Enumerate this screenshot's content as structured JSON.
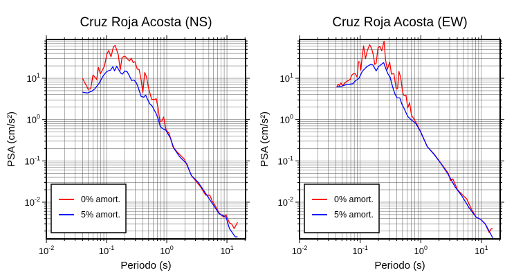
{
  "chart_data": [
    {
      "type": "line",
      "title": "Cruz Roja Acosta (NS)",
      "xlabel": "Periodo (s)",
      "ylabel": "PSA (cm/s²)",
      "xscale": "log",
      "yscale": "log",
      "xlim": [
        0.01,
        20.4
      ],
      "ylim": [
        0.00129,
        87
      ],
      "grid": true,
      "legend_position": "bottom-left",
      "xticks": [
        {
          "v": 0.01,
          "base": "10",
          "exp": "-2"
        },
        {
          "v": 0.1,
          "base": "10",
          "exp": "-1"
        },
        {
          "v": 1,
          "base": "10",
          "exp": "0"
        },
        {
          "v": 10,
          "base": "10",
          "exp": "1"
        }
      ],
      "yticks": [
        {
          "v": 10,
          "base": "10",
          "exp": "1"
        },
        {
          "v": 1,
          "base": "10",
          "exp": "0"
        },
        {
          "v": 0.1,
          "base": "10",
          "exp": "-1"
        },
        {
          "v": 0.01,
          "base": "10",
          "exp": "-2"
        }
      ],
      "series": [
        {
          "name": "0% amort.",
          "color": "#ff0000",
          "x": [
            0.04,
            0.0426,
            0.047,
            0.0494,
            0.0545,
            0.0595,
            0.0686,
            0.0736,
            0.079,
            0.0926,
            0.101,
            0.1086,
            0.1186,
            0.1295,
            0.139,
            0.157,
            0.169,
            0.181,
            0.201,
            0.24,
            0.258,
            0.277,
            0.297,
            0.324,
            0.348,
            0.374,
            0.401,
            0.431,
            0.462,
            0.496,
            0.532,
            0.561,
            0.624,
            0.67,
            0.719,
            0.771,
            0.828,
            0.889,
            0.97,
            1.099,
            1.265,
            1.51,
            1.97,
            2.56,
            3.65,
            4.43,
            5.2,
            5.68,
            6.2,
            7.4,
            8.83,
            9.64,
            11.0,
            12.0,
            13.2,
            15.0
          ],
          "y": [
            10,
            8.2,
            6.4,
            5.4,
            5.6,
            12.0,
            9.4,
            18.3,
            12.9,
            19.8,
            38.3,
            47,
            33.2,
            57,
            63,
            36.3,
            15.7,
            31.9,
            34.5,
            26.3,
            30.7,
            24,
            25.3,
            16.7,
            16.3,
            9.4,
            4.5,
            13.8,
            10.7,
            6.0,
            4.1,
            3.1,
            3.05,
            3.2,
            1.87,
            0.885,
            0.92,
            1.16,
            0.57,
            0.46,
            0.222,
            0.161,
            0.109,
            0.0443,
            0.0233,
            0.0148,
            0.0148,
            0.0107,
            0.00885,
            0.00548,
            0.00435,
            0.00495,
            0.00315,
            0.00296,
            0.00229,
            0.00327
          ]
        },
        {
          "name": "5% amort.",
          "color": "#0000ff",
          "x": [
            0.04,
            0.0482,
            0.0575,
            0.064,
            0.075,
            0.0879,
            0.101,
            0.1165,
            0.127,
            0.136,
            0.147,
            0.157,
            0.172,
            0.184,
            0.201,
            0.22,
            0.24,
            0.262,
            0.287,
            0.313,
            0.336,
            0.374,
            0.416,
            0.446,
            0.479,
            0.523,
            0.571,
            0.658,
            0.719,
            0.785,
            0.889,
            0.97,
            1.16,
            1.31,
            1.65,
            2.15,
            2.56,
            3.34,
            3.99,
            4.76,
            5.68,
            7.4,
            9.64,
            11.0,
            13.7,
            15.0
          ],
          "y": [
            4.6,
            4.4,
            4.9,
            5.6,
            7.5,
            11.4,
            14.7,
            15.7,
            19.1,
            15.1,
            19.5,
            16.7,
            13.3,
            12.6,
            15.1,
            14.4,
            11.4,
            8.8,
            9.1,
            7.7,
            6.0,
            3.66,
            3.47,
            3.95,
            3.1,
            2.42,
            2.13,
            1.45,
            1.05,
            0.667,
            0.586,
            0.55,
            0.349,
            0.203,
            0.124,
            0.0846,
            0.0443,
            0.0301,
            0.0205,
            0.0139,
            0.00944,
            0.00528,
            0.00435,
            0.00229,
            0.00145,
            0.00145
          ]
        }
      ]
    },
    {
      "type": "line",
      "title": "Cruz Roja Acosta (EW)",
      "xlabel": "Periodo (s)",
      "ylabel": "PSA (cm/s²)",
      "xscale": "log",
      "yscale": "log",
      "xlim": [
        0.01,
        20.4
      ],
      "ylim": [
        0.00129,
        87
      ],
      "grid": true,
      "legend_position": "bottom-left",
      "xticks": [
        {
          "v": 0.01,
          "base": "10",
          "exp": "-2"
        },
        {
          "v": 0.1,
          "base": "10",
          "exp": "-1"
        },
        {
          "v": 1,
          "base": "10",
          "exp": "0"
        },
        {
          "v": 10,
          "base": "10",
          "exp": "1"
        }
      ],
      "yticks": [
        {
          "v": 10,
          "base": "10",
          "exp": "1"
        },
        {
          "v": 1,
          "base": "10",
          "exp": "0"
        },
        {
          "v": 0.1,
          "base": "10",
          "exp": "-1"
        },
        {
          "v": 0.01,
          "base": "10",
          "exp": "-2"
        }
      ],
      "series": [
        {
          "name": "0% amort.",
          "color": "#ff0000",
          "x": [
            0.041,
            0.0433,
            0.0456,
            0.0481,
            0.0507,
            0.0535,
            0.0584,
            0.0638,
            0.0684,
            0.0721,
            0.0774,
            0.0832,
            0.0891,
            0.094,
            0.099,
            0.1026,
            0.108,
            0.114,
            0.1225,
            0.1315,
            0.1435,
            0.154,
            0.165,
            0.174,
            0.184,
            0.197,
            0.212,
            0.227,
            0.248,
            0.262,
            0.281,
            0.307,
            0.329,
            0.36,
            0.393,
            0.414,
            0.437,
            0.468,
            0.502,
            0.53,
            0.569,
            0.61,
            0.655,
            0.703,
            0.767,
            0.868,
            0.983,
            1.28,
            1.67,
            1.99,
            2.83,
            3.09,
            3.38,
            4.03,
            4.81,
            5.74,
            6.84,
            8.17,
            9.75,
            11.6,
            13.4,
            14.6,
            15.4
          ],
          "y": [
            6.1,
            7.2,
            6.6,
            7.7,
            6.8,
            7.2,
            8.2,
            8.8,
            9.4,
            11.7,
            12.9,
            12.9,
            10.7,
            25.3,
            24.6,
            15.7,
            34,
            61,
            29.9,
            47,
            65,
            53,
            36.3,
            21.7,
            23.1,
            55,
            59,
            46,
            79,
            28,
            16.3,
            24.6,
            12.6,
            12.9,
            5.6,
            5.6,
            14.7,
            10,
            4.6,
            3.8,
            3.95,
            1.92,
            2.58,
            1.27,
            1.05,
            0.76,
            0.514,
            0.222,
            0.145,
            0.1025,
            0.0505,
            0.0334,
            0.0366,
            0.02,
            0.0154,
            0.0119,
            0.00684,
            0.00435,
            0.00383,
            0.00296,
            0.00186,
            0.00229,
            0.00229
          ]
        },
        {
          "name": "5% amort.",
          "color": "#0000ff",
          "x": [
            0.041,
            0.049,
            0.0584,
            0.076,
            0.0832,
            0.0957,
            0.108,
            0.129,
            0.149,
            0.162,
            0.184,
            0.201,
            0.244,
            0.262,
            0.286,
            0.312,
            0.341,
            0.372,
            0.407,
            0.452,
            0.485,
            0.53,
            0.61,
            0.69,
            0.824,
            0.983,
            1.28,
            1.67,
            2.17,
            2.83,
            3.69,
            4.81,
            6.27,
            8.17,
            9.75,
            11.6,
            13.4,
            15.4
          ],
          "y": [
            6.1,
            6.4,
            7.0,
            7.4,
            8.6,
            10,
            14.7,
            19.1,
            21.7,
            21.1,
            15.1,
            19.1,
            24,
            17.9,
            12.9,
            10.7,
            6.4,
            4.3,
            3.34,
            3.34,
            2.42,
            1.87,
            1.19,
            1.0,
            0.81,
            0.528,
            0.222,
            0.1415,
            0.0846,
            0.0473,
            0.0233,
            0.0139,
            0.0073,
            0.00435,
            0.00383,
            0.00296,
            0.00201,
            0.00136
          ]
        }
      ]
    }
  ]
}
